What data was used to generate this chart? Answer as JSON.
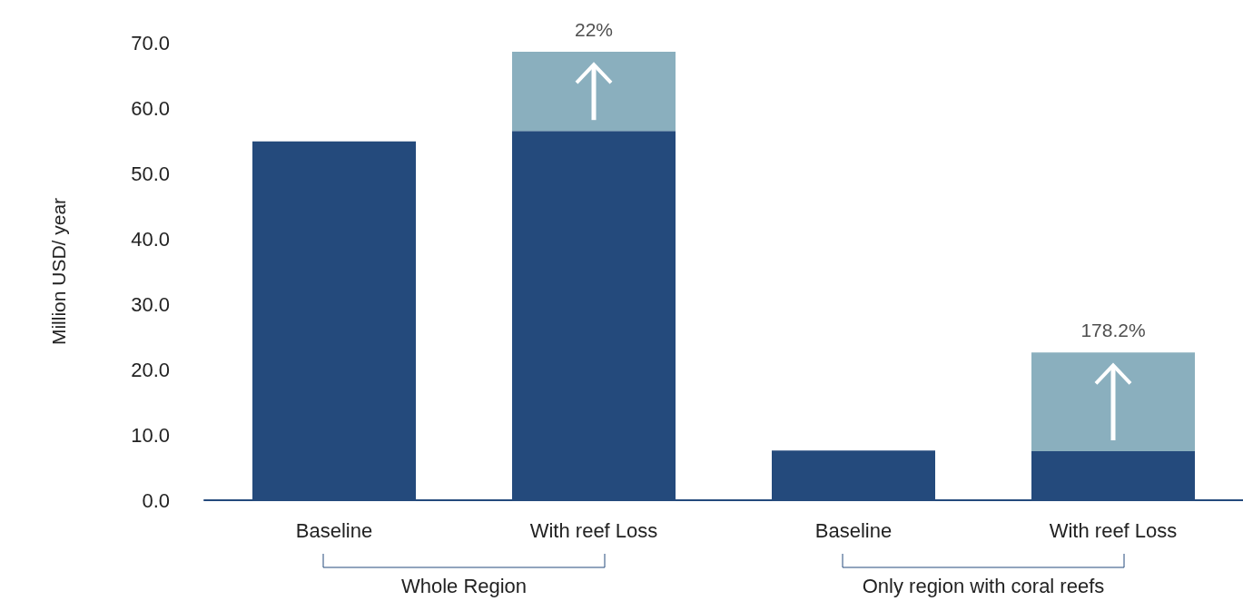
{
  "chart_data": {
    "type": "bar",
    "stacked": true,
    "ylabel": "Million USD/ year",
    "categories": [
      "Baseline",
      "With reef Loss",
      "Baseline",
      "With reef Loss"
    ],
    "series": [
      {
        "color": "#244a7c",
        "values": [
          54.9,
          56.5,
          7.6,
          7.5
        ]
      },
      {
        "color": "#8aafbe",
        "values": [
          null,
          12.1,
          null,
          15.1
        ]
      }
    ],
    "ylim": [
      0,
      70
    ],
    "yticks": [
      {
        "value": 0,
        "label": "0.0"
      },
      {
        "value": 10,
        "label": "10.0"
      },
      {
        "value": 20,
        "label": "20.0"
      },
      {
        "value": 30,
        "label": "30.0"
      },
      {
        "value": 40,
        "label": "40.0"
      },
      {
        "value": 50,
        "label": "50.0"
      },
      {
        "value": 60,
        "label": "60.0"
      },
      {
        "value": 70,
        "label": "70.0"
      }
    ],
    "grid": false,
    "annotations": [
      "22%",
      "178.2%",
      "Whole Region",
      "Only region with coral reefs"
    ]
  }
}
